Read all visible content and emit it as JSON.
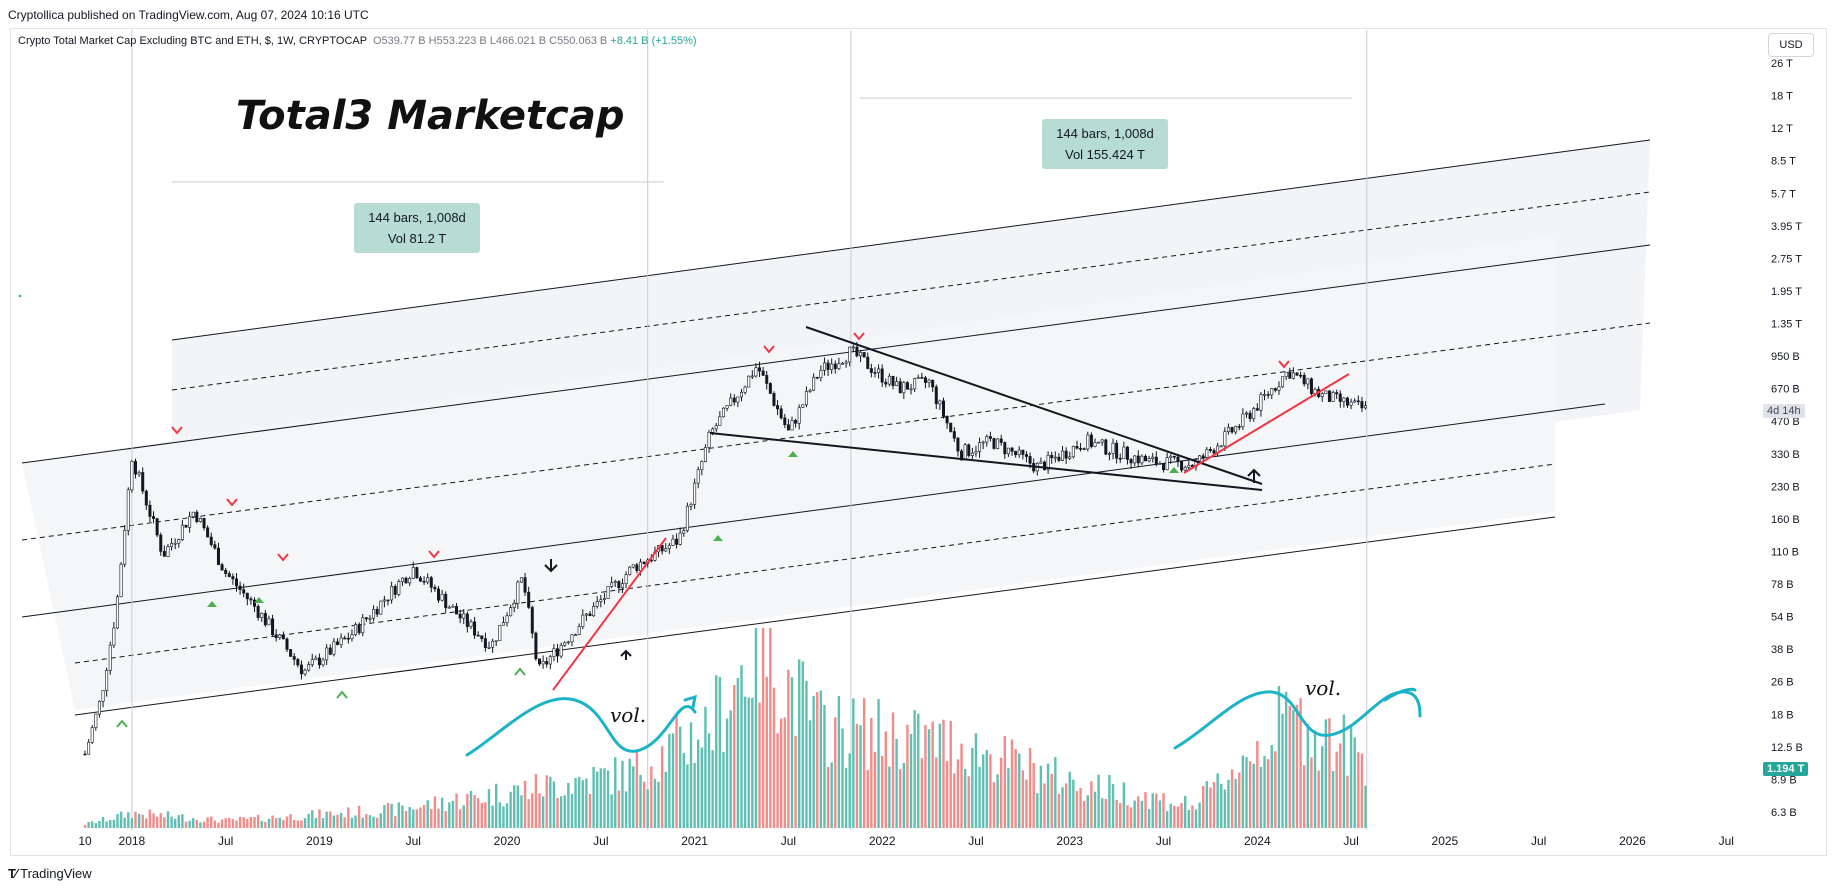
{
  "publisher_line": "Cryptollica published on TradingView.com, Aug 07, 2024 10:16 UTC",
  "footer_brand": "TradingView",
  "header": {
    "symbol": "Crypto Total Market Cap Excluding BTC and ETH, $, 1W, CRYPTOCAP",
    "open": "O539.77 B",
    "high": "H553.223 B",
    "low": "L466.021 B",
    "close": "C550.063 B",
    "change": "+8.41 B (+1.55%)"
  },
  "currency": "USD",
  "annotations": {
    "title": "Total3 Marketcap",
    "measure1_line1": "144 bars, 1,008d",
    "measure1_line2": "Vol 81.2 T",
    "measure2_line1": "144 bars, 1,008d",
    "measure2_line2": "Vol 155.424 T",
    "vol_note_1": "vol.",
    "vol_note_2": "vol."
  },
  "badges": {
    "countdown": "4d 14h",
    "volume_value": "1.194 T"
  },
  "colors": {
    "up": "#26a69a",
    "down": "#ef5350",
    "volume_up": "#5fbfb2",
    "volume_down": "#f08c8a",
    "marker_up": "#4caf50",
    "marker_down": "#f23645",
    "trend_red": "#f23645",
    "wave_cyan": "#1cb3c8",
    "measure_bg": "#b7dcd4"
  },
  "chart_data": {
    "type": "candlestick",
    "scale": "log",
    "x_ticks": [
      "10",
      "2018",
      "Jul",
      "2019",
      "Jul",
      "2020",
      "Jul",
      "2021",
      "Jul",
      "2022",
      "Jul",
      "2023",
      "Jul",
      "2024",
      "Jul",
      "2025",
      "Jul",
      "2026",
      "Jul"
    ],
    "y_ticks": [
      "26 T",
      "18 T",
      "12 T",
      "8.5 T",
      "5.7 T",
      "3.95 T",
      "2.75 T",
      "1.95 T",
      "1.35 T",
      "950 B",
      "670 B",
      "470 B",
      "330 B",
      "230 B",
      "160 B",
      "110 B",
      "78 B",
      "54 B",
      "38 B",
      "26 B",
      "18 B",
      "12.5 B",
      "8.9 B",
      "6.3 B"
    ],
    "last_close": "550.063 B",
    "price_path": [
      {
        "date": "2017-10",
        "value_billions": 12
      },
      {
        "date": "2017-11",
        "value_billions": 22
      },
      {
        "date": "2017-12",
        "value_billions": 60
      },
      {
        "date": "2018-01",
        "value_billions": 330
      },
      {
        "date": "2018-02",
        "value_billions": 190
      },
      {
        "date": "2018-03",
        "value_billions": 110
      },
      {
        "date": "2018-05",
        "value_billions": 180
      },
      {
        "date": "2018-07",
        "value_billions": 90
      },
      {
        "date": "2018-09",
        "value_billions": 60
      },
      {
        "date": "2018-12",
        "value_billions": 30
      },
      {
        "date": "2019-03",
        "value_billions": 45
      },
      {
        "date": "2019-07",
        "value_billions": 95
      },
      {
        "date": "2019-10",
        "value_billions": 55
      },
      {
        "date": "2019-12",
        "value_billions": 40
      },
      {
        "date": "2020-02",
        "value_billions": 85
      },
      {
        "date": "2020-03",
        "value_billions": 30
      },
      {
        "date": "2020-06",
        "value_billions": 55
      },
      {
        "date": "2020-09",
        "value_billions": 95
      },
      {
        "date": "2020-12",
        "value_billions": 130
      },
      {
        "date": "2021-02",
        "value_billions": 420
      },
      {
        "date": "2021-05",
        "value_billions": 900
      },
      {
        "date": "2021-07",
        "value_billions": 430
      },
      {
        "date": "2021-09",
        "value_billions": 850
      },
      {
        "date": "2021-11",
        "value_billions": 1050
      },
      {
        "date": "2022-02",
        "value_billions": 700
      },
      {
        "date": "2022-04",
        "value_billions": 750
      },
      {
        "date": "2022-06",
        "value_billions": 340
      },
      {
        "date": "2022-08",
        "value_billions": 390
      },
      {
        "date": "2022-11",
        "value_billions": 290
      },
      {
        "date": "2023-02",
        "value_billions": 390
      },
      {
        "date": "2023-06",
        "value_billions": 310
      },
      {
        "date": "2023-09",
        "value_billions": 300
      },
      {
        "date": "2023-12",
        "value_billions": 480
      },
      {
        "date": "2024-03",
        "value_billions": 850
      },
      {
        "date": "2024-05",
        "value_billions": 650
      },
      {
        "date": "2024-08",
        "value_billions": 550
      }
    ],
    "volume_relative": [
      {
        "date": "2017-10",
        "value": 0.02
      },
      {
        "date": "2018-01",
        "value": 0.08
      },
      {
        "date": "2018-07",
        "value": 0.04
      },
      {
        "date": "2019-06",
        "value": 0.1
      },
      {
        "date": "2020-03",
        "value": 0.22
      },
      {
        "date": "2020-09",
        "value": 0.3
      },
      {
        "date": "2021-02",
        "value": 0.55
      },
      {
        "date": "2021-05",
        "value": 1.0
      },
      {
        "date": "2021-09",
        "value": 0.55
      },
      {
        "date": "2022-06",
        "value": 0.45
      },
      {
        "date": "2023-01",
        "value": 0.25
      },
      {
        "date": "2023-09",
        "value": 0.12
      },
      {
        "date": "2024-03",
        "value": 0.6
      },
      {
        "date": "2024-08",
        "value": 0.38
      }
    ],
    "measurements": [
      {
        "from": "2018-01",
        "to": "2020-10",
        "bars": 144,
        "days": 1008,
        "volume": "81.2 T"
      },
      {
        "from": "2021-11",
        "to": "2024-08",
        "bars": 144,
        "days": 1008,
        "volume": "155.424 T"
      }
    ]
  }
}
